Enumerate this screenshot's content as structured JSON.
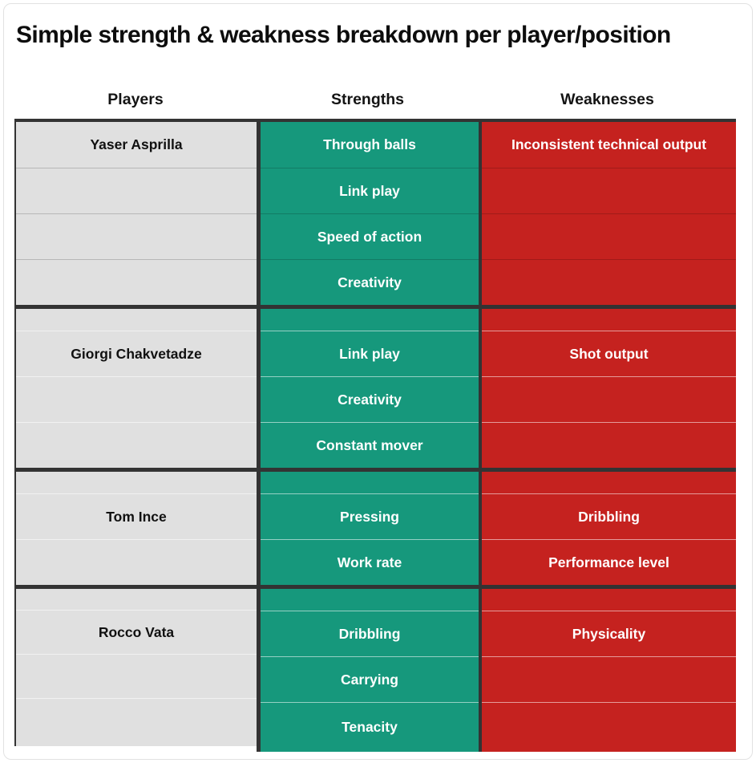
{
  "title": "Simple strength & weakness breakdown per player/position",
  "headers": {
    "players": "Players",
    "strengths": "Strengths",
    "weaknesses": "Weaknesses"
  },
  "colors": {
    "strength_bg": "#16987c",
    "weakness_bg": "#c5221f",
    "player_bg": "#e0e0e0",
    "border_dark": "#333333",
    "cell_text_light": "#ffffff",
    "cell_text_dark": "#1c1c1c"
  },
  "table": {
    "groups": [
      {
        "player": "Yaser Asprilla",
        "name_row": 0,
        "separator": "dark",
        "rows": [
          {
            "strength": "Through balls",
            "weakness": "Inconsistent technical output"
          },
          {
            "strength": "Link play",
            "weakness": ""
          },
          {
            "strength": "Speed of action",
            "weakness": ""
          },
          {
            "strength": "Creativity",
            "weakness": ""
          }
        ]
      },
      {
        "player": "Giorgi Chakvetadze",
        "name_row": 1,
        "separator": "light",
        "rows": [
          {
            "strength": "",
            "weakness": ""
          },
          {
            "strength": "Link play",
            "weakness": "Shot output"
          },
          {
            "strength": "Creativity",
            "weakness": ""
          },
          {
            "strength": "Constant mover",
            "weakness": ""
          }
        ]
      },
      {
        "player": "Tom Ince",
        "name_row": 1,
        "separator": "light",
        "rows": [
          {
            "strength": "",
            "weakness": ""
          },
          {
            "strength": "Pressing",
            "weakness": "Dribbling"
          },
          {
            "strength": "Work rate",
            "weakness": "Performance level"
          }
        ]
      },
      {
        "player": "Rocco Vata",
        "name_row": 1,
        "separator": "light",
        "rows": [
          {
            "strength": "",
            "weakness": ""
          },
          {
            "strength": "Dribbling",
            "weakness": "Physicality"
          },
          {
            "strength": "Carrying",
            "weakness": ""
          },
          {
            "strength": "Tenacity",
            "weakness": ""
          }
        ]
      }
    ]
  },
  "chart_data": {
    "type": "table",
    "title": "Simple strength & weakness breakdown per player/position",
    "columns": [
      "Players",
      "Strengths",
      "Weaknesses"
    ],
    "players": [
      {
        "name": "Yaser Asprilla",
        "strengths": [
          "Through balls",
          "Link play",
          "Speed of action",
          "Creativity"
        ],
        "weaknesses": [
          "Inconsistent technical output"
        ]
      },
      {
        "name": "Giorgi Chakvetadze",
        "strengths": [
          "Link play",
          "Creativity",
          "Constant mover"
        ],
        "weaknesses": [
          "Shot output"
        ]
      },
      {
        "name": "Tom Ince",
        "strengths": [
          "Pressing",
          "Work rate"
        ],
        "weaknesses": [
          "Dribbling",
          "Performance level"
        ]
      },
      {
        "name": "Rocco Vata",
        "strengths": [
          "Dribbling",
          "Carrying",
          "Tenacity"
        ],
        "weaknesses": [
          "Physicality"
        ]
      }
    ],
    "layout_hints": {
      "strength_color": "#16987c",
      "weakness_color": "#c5221f",
      "player_column_color": "#e0e0e0",
      "group_divider": "thick dark horizontal rule between players"
    }
  }
}
